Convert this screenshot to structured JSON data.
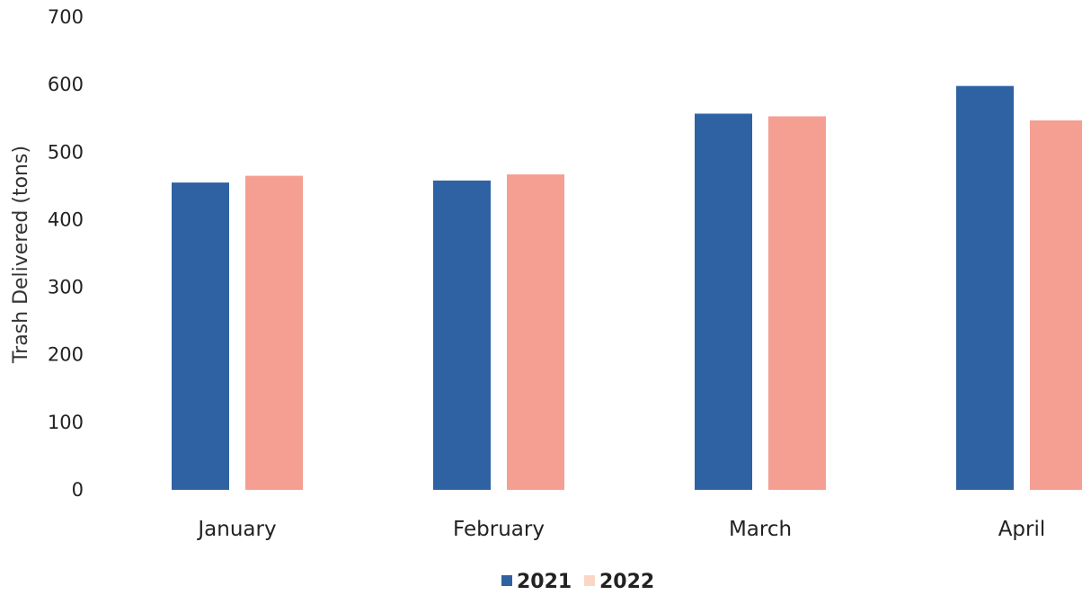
{
  "chart_data": {
    "type": "bar",
    "title": "",
    "xlabel": "",
    "ylabel": "Trash Delivered (tons)",
    "ylim": [
      0,
      700
    ],
    "yticks": [
      0,
      100,
      200,
      300,
      400,
      500,
      600,
      700
    ],
    "grid": false,
    "legend_position": "bottom-center",
    "categories": [
      "January",
      "February",
      "March",
      "April"
    ],
    "series": [
      {
        "name": "2021",
        "color": "#2f62a3",
        "values": [
          455,
          458,
          557,
          598
        ]
      },
      {
        "name": "2022",
        "color": "#f59e92",
        "legend_color": "#fbd6c6",
        "values": [
          465,
          467,
          553,
          547
        ]
      }
    ]
  }
}
